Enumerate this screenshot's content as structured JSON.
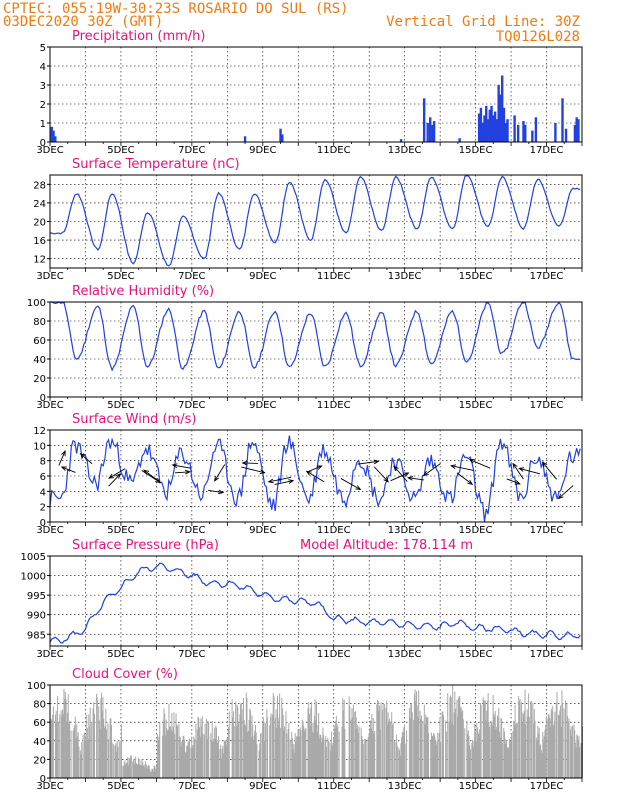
{
  "header": {
    "left1": "CPTEC:  055:19W-30:23S  ROSARIO DO SUL (RS)",
    "left2": "03DEC2020 30Z (GMT)",
    "right1": "Vertical Grid Line: 30Z",
    "right2": "TQ0126L028"
  },
  "colors": {
    "header": "#f07a12",
    "title": "#e8127c",
    "line": "#2340e0",
    "cloud": "#a9a9a9"
  },
  "x_ticks": [
    "3DEC",
    "5DEC",
    "7DEC",
    "9DEC",
    "11DEC",
    "13DEC",
    "15DEC",
    "17DEC"
  ],
  "chart_data": [
    {
      "type": "bar",
      "title": "Precipitation (mm/h)",
      "ylim": [
        0,
        5
      ],
      "yticks": [
        0,
        1,
        2,
        3,
        4,
        5
      ],
      "x_range_days": [
        3,
        18
      ],
      "points": [
        [
          3.05,
          0.8
        ],
        [
          3.1,
          0.6
        ],
        [
          3.15,
          0.3
        ],
        [
          8.5,
          0.3
        ],
        [
          9.5,
          0.7
        ],
        [
          9.55,
          0.4
        ],
        [
          12.9,
          0.15
        ],
        [
          13.55,
          2.3
        ],
        [
          13.65,
          1.0
        ],
        [
          13.72,
          1.3
        ],
        [
          13.78,
          0.9
        ],
        [
          13.83,
          1.1
        ],
        [
          14.55,
          0.2
        ],
        [
          15.1,
          1.5
        ],
        [
          15.15,
          1.8
        ],
        [
          15.2,
          1.0
        ],
        [
          15.25,
          1.4
        ],
        [
          15.3,
          1.9
        ],
        [
          15.35,
          1.2
        ],
        [
          15.4,
          1.7
        ],
        [
          15.45,
          1.9
        ],
        [
          15.5,
          1.4
        ],
        [
          15.55,
          1.6
        ],
        [
          15.6,
          1.2
        ],
        [
          15.65,
          3.0
        ],
        [
          15.7,
          2.5
        ],
        [
          15.75,
          3.5
        ],
        [
          15.8,
          1.8
        ],
        [
          15.85,
          1.0
        ],
        [
          15.9,
          1.2
        ],
        [
          16.1,
          1.4
        ],
        [
          16.2,
          0.9
        ],
        [
          16.35,
          1.1
        ],
        [
          16.4,
          0.9
        ],
        [
          16.6,
          0.6
        ],
        [
          16.7,
          1.3
        ],
        [
          17.25,
          1.0
        ],
        [
          17.45,
          2.3
        ],
        [
          17.55,
          0.7
        ],
        [
          17.8,
          0.9
        ],
        [
          17.85,
          1.3
        ],
        [
          17.9,
          1.2
        ]
      ]
    },
    {
      "type": "line",
      "title": "Surface Temperature (nC)",
      "ylim": [
        10,
        30
      ],
      "yticks": [
        12,
        16,
        20,
        24,
        28
      ],
      "x_range_days": [
        3,
        18
      ],
      "min_temps": [
        17.5,
        14,
        11,
        10.5,
        12,
        14,
        15.5,
        16,
        17.5,
        18,
        18.5,
        18.5,
        19,
        18.5,
        19
      ],
      "max_temps": [
        26,
        26,
        22,
        21,
        26,
        26,
        28.5,
        29,
        29.5,
        29.5,
        29.5,
        30,
        29.5,
        29,
        27
      ]
    },
    {
      "type": "line",
      "title": "Relative Humidity (%)",
      "ylim": [
        0,
        100
      ],
      "yticks": [
        0,
        20,
        40,
        60,
        80,
        100
      ],
      "x_range_days": [
        3,
        18
      ],
      "min_rh": [
        40,
        30,
        32,
        30,
        30,
        31,
        31,
        32,
        33,
        33,
        35,
        38,
        45,
        52,
        40
      ],
      "max_rh": [
        100,
        95,
        95,
        92,
        90,
        90,
        90,
        88,
        88,
        88,
        90,
        90,
        98,
        100,
        100
      ]
    },
    {
      "type": "line",
      "title": "Surface Wind (m/s)",
      "ylim": [
        0,
        12
      ],
      "yticks": [
        0,
        2,
        4,
        6,
        8,
        10,
        12
      ],
      "x_range_days": [
        3,
        18
      ],
      "max_speed": [
        10,
        10.5,
        9.5,
        9,
        10,
        10.5,
        10.5,
        9.5,
        8.5,
        8,
        8,
        8.5,
        10.5,
        8.5,
        8.5
      ],
      "min_speed": [
        3,
        5,
        5,
        4,
        3.5,
        3,
        2,
        3,
        3,
        3,
        3,
        3,
        1,
        3,
        3
      ],
      "arrows_count": 32
    },
    {
      "type": "line",
      "title": "Surface Pressure (hPa)",
      "annotation": "Model Altitude: 178.114 m",
      "ylim": [
        982,
        1005
      ],
      "yticks": [
        985,
        990,
        995,
        1000,
        1005
      ],
      "x_range_days": [
        3,
        18
      ],
      "points": [
        [
          3,
          983
        ],
        [
          3.5,
          984
        ],
        [
          4,
          986.5
        ],
        [
          4.5,
          993
        ],
        [
          5,
          997
        ],
        [
          5.5,
          1001
        ],
        [
          6,
          1002.5
        ],
        [
          6.5,
          1001.5
        ],
        [
          7,
          1000
        ],
        [
          7.5,
          998
        ],
        [
          8,
          998
        ],
        [
          8.5,
          997
        ],
        [
          9,
          995
        ],
        [
          9.5,
          994
        ],
        [
          10,
          993.5
        ],
        [
          10.5,
          993
        ],
        [
          11,
          989
        ],
        [
          11.5,
          988.5
        ],
        [
          12,
          988
        ],
        [
          12.5,
          988
        ],
        [
          13,
          987.5
        ],
        [
          13.5,
          987
        ],
        [
          14,
          987
        ],
        [
          14.5,
          988
        ],
        [
          15,
          986.5
        ],
        [
          15.5,
          986.5
        ],
        [
          16,
          986
        ],
        [
          16.5,
          985
        ],
        [
          17,
          985
        ],
        [
          17.5,
          984.5
        ],
        [
          18,
          985
        ]
      ]
    },
    {
      "type": "bar",
      "title": "Cloud Cover (%)",
      "ylim": [
        0,
        100
      ],
      "yticks": [
        0,
        20,
        40,
        60,
        80,
        100
      ],
      "x_range_days": [
        3,
        18
      ],
      "daily_max": [
        100,
        95,
        25,
        80,
        75,
        100,
        95,
        88,
        90,
        92,
        100,
        100,
        100,
        100,
        100
      ]
    }
  ]
}
